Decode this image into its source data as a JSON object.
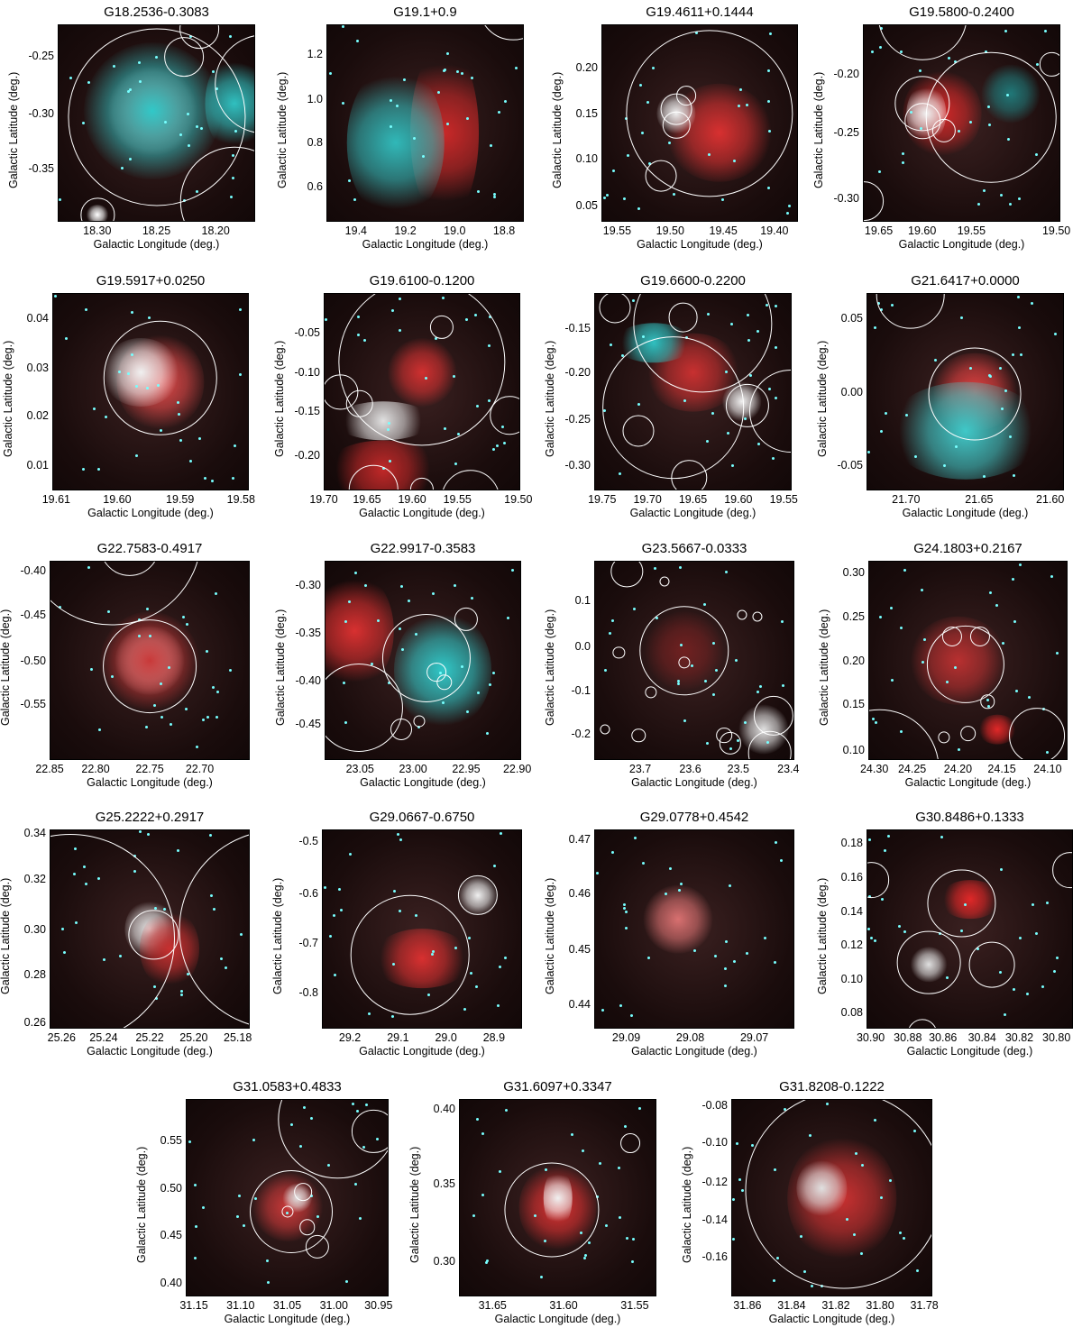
{
  "axis_labels": {
    "x": "Galactic Longitude (deg.)",
    "y": "Galactic Latitude (deg.)"
  },
  "colors": {
    "infrared_red": "#d8282a",
    "infrared_cyan": "#3fd8d8",
    "background": "#1a1010",
    "ring": "#ffffff"
  },
  "panels": [
    {
      "title": "G18.2536-0.3083",
      "xticks": [
        "18.30",
        "18.25",
        "18.20"
      ],
      "yticks": [
        "-0.25",
        "-0.30",
        "-0.35"
      ]
    },
    {
      "title": "G19.1+0.9",
      "xticks": [
        "19.4",
        "19.2",
        "19.0",
        "18.8"
      ],
      "yticks": [
        "1.2",
        "1.0",
        "0.8",
        "0.6"
      ]
    },
    {
      "title": "G19.4611+0.1444",
      "xticks": [
        "19.55",
        "19.50",
        "19.45",
        "19.40"
      ],
      "yticks": [
        "0.20",
        "0.15",
        "0.10",
        "0.05"
      ]
    },
    {
      "title": "G19.5800-0.2400",
      "xticks": [
        "19.65",
        "19.60",
        "19.55",
        "19.50"
      ],
      "yticks": [
        "-0.20",
        "-0.25",
        "-0.30"
      ]
    },
    {
      "title": "G19.5917+0.0250",
      "xticks": [
        "19.61",
        "19.60",
        "19.59",
        "19.58"
      ],
      "yticks": [
        "0.04",
        "0.03",
        "0.02",
        "0.01"
      ]
    },
    {
      "title": "G19.6100-0.1200",
      "xticks": [
        "19.70",
        "19.65",
        "19.60",
        "19.55",
        "19.50"
      ],
      "yticks": [
        "-0.05",
        "-0.10",
        "-0.15",
        "-0.20"
      ]
    },
    {
      "title": "G19.6600-0.2200",
      "xticks": [
        "19.75",
        "19.70",
        "19.65",
        "19.60",
        "19.55"
      ],
      "yticks": [
        "-0.15",
        "-0.20",
        "-0.25",
        "-0.30"
      ]
    },
    {
      "title": "G21.6417+0.0000",
      "xticks": [
        "21.70",
        "21.65",
        "21.60"
      ],
      "yticks": [
        "0.05",
        "0.00",
        "-0.05"
      ]
    },
    {
      "title": "G22.7583-0.4917",
      "xticks": [
        "22.85",
        "22.80",
        "22.75",
        "22.70"
      ],
      "yticks": [
        "-0.40",
        "-0.45",
        "-0.50",
        "-0.55"
      ]
    },
    {
      "title": "G22.9917-0.3583",
      "xticks": [
        "23.05",
        "23.00",
        "22.95",
        "22.90"
      ],
      "yticks": [
        "-0.30",
        "-0.35",
        "-0.40",
        "-0.45"
      ]
    },
    {
      "title": "G23.5667-0.0333",
      "xticks": [
        "23.7",
        "23.6",
        "23.5",
        "23.4"
      ],
      "yticks": [
        "0.1",
        "0.0",
        "-0.1",
        "-0.2"
      ]
    },
    {
      "title": "G24.1803+0.2167",
      "xticks": [
        "24.30",
        "24.25",
        "24.20",
        "24.15",
        "24.10"
      ],
      "yticks": [
        "0.30",
        "0.25",
        "0.20",
        "0.15",
        "0.10"
      ]
    },
    {
      "title": "G25.2222+0.2917",
      "xticks": [
        "25.26",
        "25.24",
        "25.22",
        "25.20",
        "25.18"
      ],
      "yticks": [
        "0.34",
        "0.32",
        "0.30",
        "0.28",
        "0.26"
      ]
    },
    {
      "title": "G29.0667-0.6750",
      "xticks": [
        "29.2",
        "29.1",
        "29.0",
        "28.9"
      ],
      "yticks": [
        "-0.5",
        "-0.6",
        "-0.7",
        "-0.8"
      ]
    },
    {
      "title": "G29.0778+0.4542",
      "xticks": [
        "29.09",
        "29.08",
        "29.07"
      ],
      "yticks": [
        "0.47",
        "0.46",
        "0.45",
        "0.44"
      ]
    },
    {
      "title": "G30.8486+0.1333",
      "xticks": [
        "30.90",
        "30.88",
        "30.86",
        "30.84",
        "30.82",
        "30.80"
      ],
      "yticks": [
        "0.18",
        "0.16",
        "0.14",
        "0.12",
        "0.10",
        "0.08"
      ]
    },
    {
      "title": "G31.0583+0.4833",
      "xticks": [
        "31.15",
        "31.10",
        "31.05",
        "31.00",
        "30.95"
      ],
      "yticks": [
        "0.55",
        "0.50",
        "0.45",
        "0.40"
      ]
    },
    {
      "title": "G31.6097+0.3347",
      "xticks": [
        "31.65",
        "31.60",
        "31.55"
      ],
      "yticks": [
        "0.40",
        "0.35",
        "0.30"
      ]
    },
    {
      "title": "G31.8208-0.1222",
      "xticks": [
        "31.86",
        "31.84",
        "31.82",
        "31.80",
        "31.78"
      ],
      "yticks": [
        "-0.08",
        "-0.10",
        "-0.12",
        "-0.14",
        "-0.16"
      ]
    }
  ]
}
